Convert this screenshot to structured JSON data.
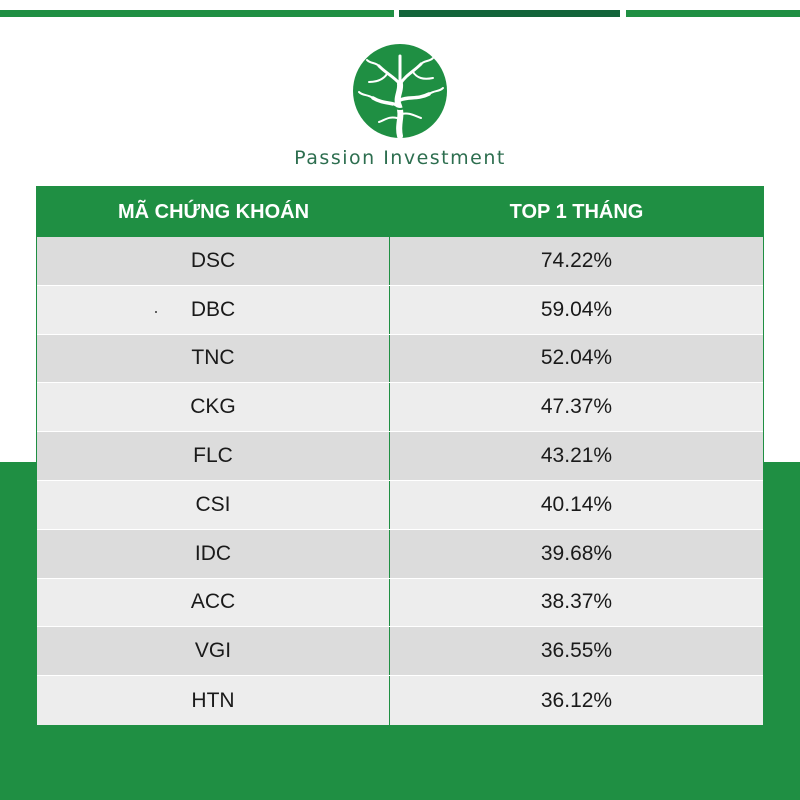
{
  "colors": {
    "primary_green": "#1f8f43",
    "dark_green": "#13643a",
    "row_dark": "#dcdcdc",
    "row_light": "#ededed"
  },
  "brand": {
    "name": "Passion Investment",
    "logo_icon": "tree-logo-icon"
  },
  "table": {
    "headers": [
      "MÃ CHỨNG KHOÁN",
      "TOP 1 THÁNG"
    ],
    "rows": [
      {
        "code": "DSC",
        "value": "74.22%"
      },
      {
        "code": "DBC",
        "value": "59.04%"
      },
      {
        "code": "TNC",
        "value": "52.04%"
      },
      {
        "code": "CKG",
        "value": "47.37%"
      },
      {
        "code": "FLC",
        "value": "43.21%"
      },
      {
        "code": "CSI",
        "value": "40.14%"
      },
      {
        "code": "IDC",
        "value": "39.68%"
      },
      {
        "code": "ACC",
        "value": "38.37%"
      },
      {
        "code": "VGI",
        "value": "36.55%"
      },
      {
        "code": "HTN",
        "value": "36.12%"
      }
    ]
  }
}
